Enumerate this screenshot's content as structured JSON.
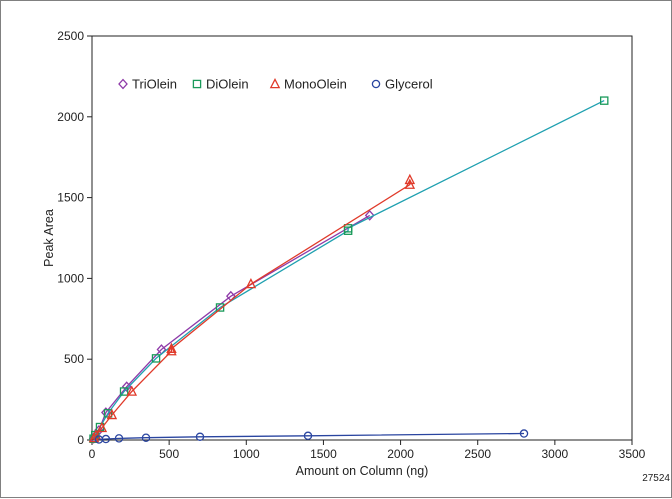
{
  "chart_data": {
    "type": "line",
    "title": "",
    "xlabel": "Amount on Column (ng)",
    "ylabel": "Peak Area",
    "xlim": [
      0,
      3500
    ],
    "ylim": [
      0,
      2500
    ],
    "x_ticks": [
      0,
      500,
      1000,
      1500,
      2000,
      2500,
      3000,
      3500
    ],
    "y_ticks": [
      0,
      500,
      1000,
      1500,
      2000,
      2500
    ],
    "grid": false,
    "legend_position": "top-left",
    "figure_id": "27524",
    "series": [
      {
        "name": "TriOlein",
        "marker": "diamond",
        "color": "#8e3aa8",
        "line_color": "#8e3aa8",
        "points": [
          [
            11,
            10
          ],
          [
            22,
            25
          ],
          [
            45,
            60
          ],
          [
            90,
            170
          ],
          [
            225,
            330
          ],
          [
            450,
            560
          ],
          [
            900,
            890
          ],
          [
            1800,
            1390
          ]
        ]
      },
      {
        "name": "DiOlein",
        "marker": "square",
        "color": "#1a9a5a",
        "line_color": "#1fa0b0",
        "points": [
          [
            10,
            8
          ],
          [
            21,
            30
          ],
          [
            52,
            80
          ],
          [
            104,
            165
          ],
          [
            208,
            300
          ],
          [
            415,
            505
          ],
          [
            830,
            820
          ],
          [
            1660,
            1295
          ],
          [
            1660,
            1310
          ],
          [
            3320,
            2100
          ]
        ]
      },
      {
        "name": "MonoOlein",
        "marker": "triangle",
        "color": "#e03a2a",
        "line_color": "#e03a2a",
        "points": [
          [
            13,
            12
          ],
          [
            26,
            28
          ],
          [
            64,
            75
          ],
          [
            129,
            155
          ],
          [
            258,
            300
          ],
          [
            515,
            550
          ],
          [
            515,
            565
          ],
          [
            1030,
            965
          ],
          [
            2060,
            1580
          ],
          [
            2060,
            1610
          ]
        ]
      },
      {
        "name": "Glycerol",
        "marker": "circle",
        "color": "#2a45a0",
        "line_color": "#2a45a0",
        "points": [
          [
            45,
            3
          ],
          [
            90,
            6
          ],
          [
            175,
            10
          ],
          [
            350,
            14
          ],
          [
            700,
            20
          ],
          [
            1400,
            26
          ],
          [
            2800,
            40
          ]
        ]
      }
    ]
  }
}
